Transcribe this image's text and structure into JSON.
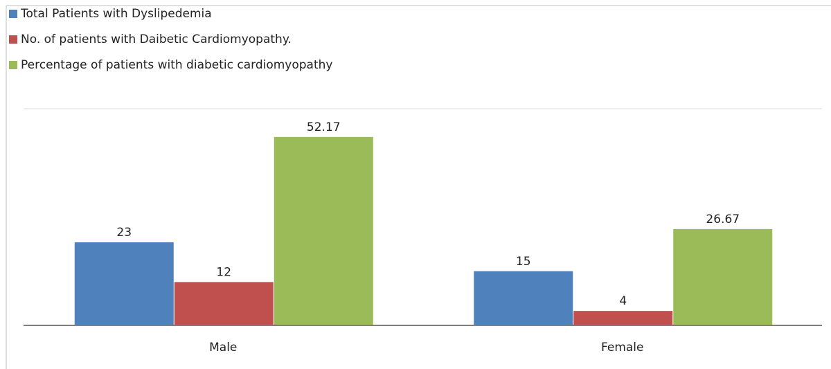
{
  "chart_data": {
    "type": "bar",
    "categories": [
      "Male",
      "Female"
    ],
    "series": [
      {
        "name": "Total Patients with Dyslipedemia",
        "color": "#4f81bd",
        "values": [
          23,
          15
        ]
      },
      {
        "name": "No. of patients with Daibetic Cardiomyopathy.",
        "color": "#c0504d",
        "values": [
          12,
          4
        ]
      },
      {
        "name": "Percentage of patients with diabetic cardiomyopathy",
        "color": "#9bbb59",
        "values": [
          52.17,
          26.67
        ]
      }
    ],
    "ylim": [
      0,
      60
    ],
    "grid": true,
    "legend": "top-left"
  }
}
